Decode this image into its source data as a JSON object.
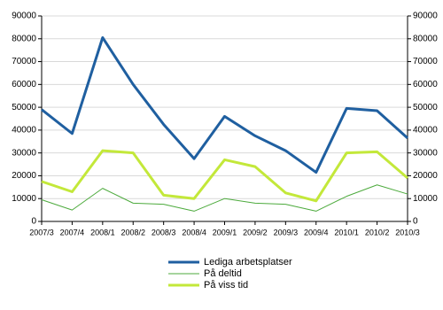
{
  "chart_data": {
    "type": "line",
    "categories": [
      "2007/3",
      "2007/4",
      "2008/1",
      "2008/2",
      "2008/3",
      "2008/4",
      "2009/1",
      "2009/2",
      "2009/3",
      "2009/4",
      "2010/1",
      "2010/2",
      "2010/3"
    ],
    "series": [
      {
        "name": "Lediga arbetsplatser",
        "color": "#1f5fa0",
        "values": [
          49000,
          38500,
          80500,
          60000,
          42500,
          27500,
          46000,
          37500,
          31000,
          21500,
          49500,
          48500,
          36500
        ]
      },
      {
        "name": "På deltid",
        "color": "#4caa3c",
        "values": [
          9500,
          5000,
          14500,
          8000,
          7500,
          4500,
          10000,
          8000,
          7500,
          4500,
          11000,
          16000,
          12000
        ]
      },
      {
        "name": "På viss tid",
        "color": "#c3e83a",
        "values": [
          17500,
          13000,
          31000,
          30000,
          11500,
          10000,
          27000,
          24000,
          12500,
          9000,
          30000,
          30500,
          19000
        ]
      }
    ],
    "ylim": [
      0,
      90000
    ],
    "yticks": [
      0,
      10000,
      20000,
      30000,
      40000,
      50000,
      60000,
      70000,
      80000,
      90000
    ],
    "y2lim": [
      0,
      90000
    ],
    "y2ticks": [
      0,
      10000,
      20000,
      30000,
      40000,
      50000,
      60000,
      70000,
      80000,
      90000
    ],
    "grid": true
  }
}
